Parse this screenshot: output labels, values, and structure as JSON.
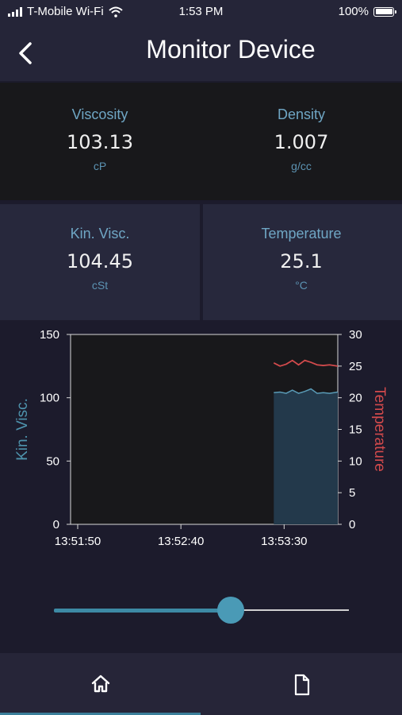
{
  "status_bar": {
    "carrier": "T-Mobile Wi-Fi",
    "time": "1:53 PM",
    "battery": "100%"
  },
  "header": {
    "title": "Monitor Device",
    "back_icon": "chevron-left-icon"
  },
  "metrics": {
    "viscosity": {
      "label": "Viscosity",
      "value": "103.13",
      "unit": "cP"
    },
    "density": {
      "label": "Density",
      "value": "1.007",
      "unit": "g/cc"
    },
    "kin_visc": {
      "label": "Kin. Visc.",
      "value": "104.45",
      "unit": "cSt"
    },
    "temperature": {
      "label": "Temperature",
      "value": "25.1",
      "unit": "°C"
    }
  },
  "chart_data": {
    "type": "area",
    "ylabel_left": "Kin. Visc.",
    "ylabel_right": "Temperature",
    "x_tick_labels": [
      "13:51:50",
      "13:52:40",
      "13:53:30"
    ],
    "y_left_ticks": [
      "0",
      "50",
      "100",
      "150"
    ],
    "y_right_ticks": [
      "0",
      "5",
      "10",
      "15",
      "20",
      "25",
      "30"
    ],
    "ylim_left": [
      0,
      150
    ],
    "ylim_right": [
      0,
      30
    ],
    "x_seconds_range": [
      0,
      126
    ],
    "x_tick_seconds": [
      0,
      50,
      100
    ],
    "series": [
      {
        "axis": "left",
        "color": "#5a9bb6",
        "fill": "#23394b",
        "points": [
          [
            95,
            104
          ],
          [
            98,
            104.5
          ],
          [
            101,
            103.5
          ],
          [
            104,
            106
          ],
          [
            107,
            103.5
          ],
          [
            110,
            105
          ],
          [
            113,
            107
          ],
          [
            116,
            103.5
          ],
          [
            119,
            104
          ],
          [
            122,
            103.5
          ],
          [
            126,
            104.5
          ]
        ]
      },
      {
        "axis": "right",
        "color": "#d24a4c",
        "points": [
          [
            95,
            25.5
          ],
          [
            98,
            25
          ],
          [
            101,
            25.3
          ],
          [
            104,
            25.9
          ],
          [
            107,
            25.2
          ],
          [
            110,
            25.9
          ],
          [
            113,
            25.6
          ],
          [
            116,
            25.2
          ],
          [
            119,
            25.1
          ],
          [
            122,
            25.2
          ],
          [
            126,
            25
          ]
        ]
      }
    ],
    "colors": {
      "axis": "#d8d8d8",
      "left_label": "#4e93ad",
      "right_label": "#d24a4c"
    }
  },
  "slider": {
    "value_fraction": 0.6
  },
  "tabbar": {
    "tabs": [
      {
        "name": "home",
        "icon": "home-icon",
        "active": true
      },
      {
        "name": "report",
        "icon": "document-icon",
        "active": false
      }
    ],
    "active_color": "#3b7f9a"
  }
}
